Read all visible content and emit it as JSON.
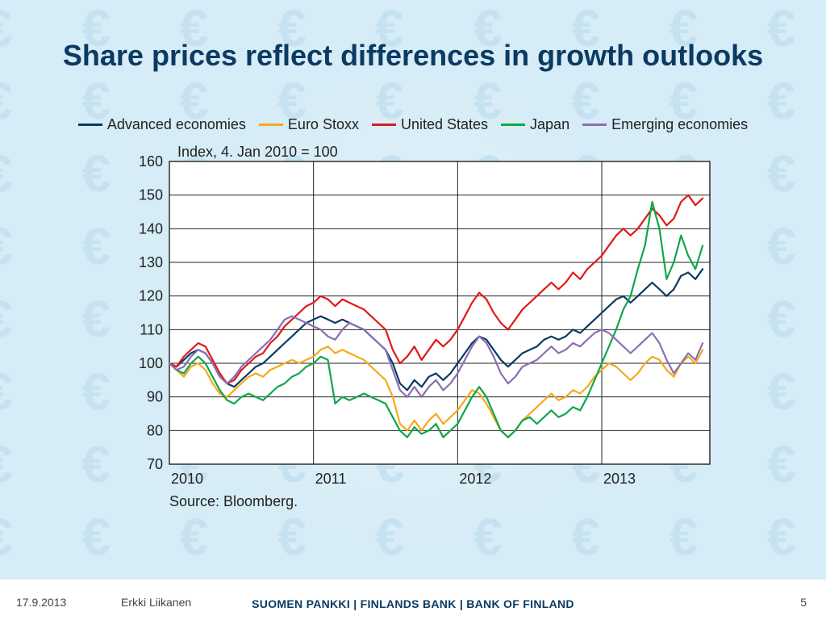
{
  "slide": {
    "title": "Share prices reflect differences in growth outlooks",
    "title_color": "#0b3a63",
    "title_fontsize": 36,
    "background_color": "#d6ecf6",
    "watermark_symbol": "€",
    "watermark_color": "#c6e2f0"
  },
  "chart": {
    "type": "line",
    "subtitle": "Index, 4. Jan 2010 = 100",
    "subtitle_fontsize": 18,
    "source_text": "Source: Bloomberg.",
    "plot_background": "#ffffff",
    "grid_color": "#222222",
    "grid_width": 1,
    "axis_color": "#222222",
    "line_width": 2.2,
    "x": {
      "min": 2010.0,
      "max": 2013.75,
      "ticks": [
        2010,
        2011,
        2012,
        2013
      ],
      "tick_labels": [
        "2010",
        "2011",
        "2012",
        "2013"
      ],
      "fontsize": 18
    },
    "y": {
      "min": 70,
      "max": 160,
      "ticks": [
        70,
        80,
        90,
        100,
        110,
        120,
        130,
        140,
        150,
        160
      ],
      "fontsize": 18
    },
    "legend": {
      "position": "top-center",
      "fontsize": 18,
      "items": [
        {
          "label": "Advanced economies",
          "color": "#0b3a63"
        },
        {
          "label": "Euro Stoxx",
          "color": "#f6a91b"
        },
        {
          "label": "United States",
          "color": "#e11919"
        },
        {
          "label": "Japan",
          "color": "#0fa74a"
        },
        {
          "label": "Emerging economies",
          "color": "#8a6fb3"
        }
      ]
    },
    "series": [
      {
        "name": "Advanced economies",
        "color": "#0b3a63",
        "x": [
          2010.0,
          2010.05,
          2010.1,
          2010.15,
          2010.2,
          2010.25,
          2010.3,
          2010.35,
          2010.4,
          2010.45,
          2010.5,
          2010.55,
          2010.6,
          2010.65,
          2010.7,
          2010.75,
          2010.8,
          2010.85,
          2010.9,
          2010.95,
          2011.0,
          2011.05,
          2011.1,
          2011.15,
          2011.2,
          2011.25,
          2011.3,
          2011.35,
          2011.4,
          2011.45,
          2011.5,
          2011.55,
          2011.6,
          2011.65,
          2011.7,
          2011.75,
          2011.8,
          2011.85,
          2011.9,
          2011.95,
          2012.0,
          2012.05,
          2012.1,
          2012.15,
          2012.2,
          2012.25,
          2012.3,
          2012.35,
          2012.4,
          2012.45,
          2012.5,
          2012.55,
          2012.6,
          2012.65,
          2012.7,
          2012.75,
          2012.8,
          2012.85,
          2012.9,
          2012.95,
          2013.0,
          2013.05,
          2013.1,
          2013.15,
          2013.2,
          2013.25,
          2013.3,
          2013.35,
          2013.4,
          2013.45,
          2013.5,
          2013.55,
          2013.6,
          2013.65,
          2013.7
        ],
        "y": [
          100,
          99,
          101,
          103,
          104,
          103,
          100,
          96,
          94,
          93,
          95,
          97,
          99,
          100,
          102,
          104,
          106,
          108,
          110,
          112,
          113,
          114,
          113,
          112,
          113,
          112,
          111,
          110,
          108,
          106,
          104,
          100,
          94,
          92,
          95,
          93,
          96,
          97,
          95,
          97,
          100,
          103,
          106,
          108,
          107,
          104,
          101,
          99,
          101,
          103,
          104,
          105,
          107,
          108,
          107,
          108,
          110,
          109,
          111,
          113,
          115,
          117,
          119,
          120,
          118,
          120,
          122,
          124,
          122,
          120,
          122,
          126,
          127,
          125,
          128
        ]
      },
      {
        "name": "Euro Stoxx",
        "color": "#f6a91b",
        "x": [
          2010.0,
          2010.05,
          2010.1,
          2010.15,
          2010.2,
          2010.25,
          2010.3,
          2010.35,
          2010.4,
          2010.45,
          2010.5,
          2010.55,
          2010.6,
          2010.65,
          2010.7,
          2010.75,
          2010.8,
          2010.85,
          2010.9,
          2010.95,
          2011.0,
          2011.05,
          2011.1,
          2011.15,
          2011.2,
          2011.25,
          2011.3,
          2011.35,
          2011.4,
          2011.45,
          2011.5,
          2011.55,
          2011.6,
          2011.65,
          2011.7,
          2011.75,
          2011.8,
          2011.85,
          2011.9,
          2011.95,
          2012.0,
          2012.05,
          2012.1,
          2012.15,
          2012.2,
          2012.25,
          2012.3,
          2012.35,
          2012.4,
          2012.45,
          2012.5,
          2012.55,
          2012.6,
          2012.65,
          2012.7,
          2012.75,
          2012.8,
          2012.85,
          2012.9,
          2012.95,
          2013.0,
          2013.05,
          2013.1,
          2013.15,
          2013.2,
          2013.25,
          2013.3,
          2013.35,
          2013.4,
          2013.45,
          2013.5,
          2013.55,
          2013.6,
          2013.65,
          2013.7
        ],
        "y": [
          100,
          98,
          96,
          99,
          100,
          98,
          94,
          91,
          90,
          92,
          94,
          96,
          97,
          96,
          98,
          99,
          100,
          101,
          100,
          101,
          102,
          104,
          105,
          103,
          104,
          103,
          102,
          101,
          99,
          97,
          95,
          90,
          82,
          80,
          83,
          80,
          83,
          85,
          82,
          84,
          86,
          89,
          92,
          91,
          88,
          84,
          80,
          78,
          80,
          83,
          85,
          87,
          89,
          91,
          89,
          90,
          92,
          91,
          93,
          96,
          98,
          100,
          99,
          97,
          95,
          97,
          100,
          102,
          101,
          98,
          96,
          100,
          102,
          100,
          104
        ]
      },
      {
        "name": "United States",
        "color": "#e11919",
        "x": [
          2010.0,
          2010.05,
          2010.1,
          2010.15,
          2010.2,
          2010.25,
          2010.3,
          2010.35,
          2010.4,
          2010.45,
          2010.5,
          2010.55,
          2010.6,
          2010.65,
          2010.7,
          2010.75,
          2010.8,
          2010.85,
          2010.9,
          2010.95,
          2011.0,
          2011.05,
          2011.1,
          2011.15,
          2011.2,
          2011.25,
          2011.3,
          2011.35,
          2011.4,
          2011.45,
          2011.5,
          2011.55,
          2011.6,
          2011.65,
          2011.7,
          2011.75,
          2011.8,
          2011.85,
          2011.9,
          2011.95,
          2012.0,
          2012.05,
          2012.1,
          2012.15,
          2012.2,
          2012.25,
          2012.3,
          2012.35,
          2012.4,
          2012.45,
          2012.5,
          2012.55,
          2012.6,
          2012.65,
          2012.7,
          2012.75,
          2012.8,
          2012.85,
          2012.9,
          2012.95,
          2013.0,
          2013.05,
          2013.1,
          2013.15,
          2013.2,
          2013.25,
          2013.3,
          2013.35,
          2013.4,
          2013.45,
          2013.5,
          2013.55,
          2013.6,
          2013.65,
          2013.7
        ],
        "y": [
          100,
          99,
          102,
          104,
          106,
          105,
          101,
          97,
          94,
          95,
          98,
          100,
          102,
          103,
          106,
          108,
          111,
          113,
          115,
          117,
          118,
          120,
          119,
          117,
          119,
          118,
          117,
          116,
          114,
          112,
          110,
          104,
          100,
          102,
          105,
          101,
          104,
          107,
          105,
          107,
          110,
          114,
          118,
          121,
          119,
          115,
          112,
          110,
          113,
          116,
          118,
          120,
          122,
          124,
          122,
          124,
          127,
          125,
          128,
          130,
          132,
          135,
          138,
          140,
          138,
          140,
          143,
          146,
          144,
          141,
          143,
          148,
          150,
          147,
          149
        ]
      },
      {
        "name": "Japan",
        "color": "#0fa74a",
        "x": [
          2010.0,
          2010.05,
          2010.1,
          2010.15,
          2010.2,
          2010.25,
          2010.3,
          2010.35,
          2010.4,
          2010.45,
          2010.5,
          2010.55,
          2010.6,
          2010.65,
          2010.7,
          2010.75,
          2010.8,
          2010.85,
          2010.9,
          2010.95,
          2011.0,
          2011.05,
          2011.1,
          2011.15,
          2011.2,
          2011.25,
          2011.3,
          2011.35,
          2011.4,
          2011.45,
          2011.5,
          2011.55,
          2011.6,
          2011.65,
          2011.7,
          2011.75,
          2011.8,
          2011.85,
          2011.9,
          2011.95,
          2012.0,
          2012.05,
          2012.1,
          2012.15,
          2012.2,
          2012.25,
          2012.3,
          2012.35,
          2012.4,
          2012.45,
          2012.5,
          2012.55,
          2012.6,
          2012.65,
          2012.7,
          2012.75,
          2012.8,
          2012.85,
          2012.9,
          2012.95,
          2013.0,
          2013.05,
          2013.1,
          2013.15,
          2013.2,
          2013.25,
          2013.3,
          2013.35,
          2013.4,
          2013.45,
          2013.5,
          2013.55,
          2013.6,
          2013.65,
          2013.7
        ],
        "y": [
          100,
          98,
          97,
          100,
          102,
          100,
          96,
          92,
          89,
          88,
          90,
          91,
          90,
          89,
          91,
          93,
          94,
          96,
          97,
          99,
          100,
          102,
          101,
          88,
          90,
          89,
          90,
          91,
          90,
          89,
          88,
          84,
          80,
          78,
          81,
          79,
          80,
          82,
          78,
          80,
          82,
          86,
          90,
          93,
          90,
          85,
          80,
          78,
          80,
          83,
          84,
          82,
          84,
          86,
          84,
          85,
          87,
          86,
          90,
          95,
          100,
          105,
          110,
          116,
          120,
          128,
          135,
          148,
          140,
          125,
          130,
          138,
          132,
          128,
          135
        ]
      },
      {
        "name": "Emerging economies",
        "color": "#8a6fb3",
        "x": [
          2010.0,
          2010.05,
          2010.1,
          2010.15,
          2010.2,
          2010.25,
          2010.3,
          2010.35,
          2010.4,
          2010.45,
          2010.5,
          2010.55,
          2010.6,
          2010.65,
          2010.7,
          2010.75,
          2010.8,
          2010.85,
          2010.9,
          2010.95,
          2011.0,
          2011.05,
          2011.1,
          2011.15,
          2011.2,
          2011.25,
          2011.3,
          2011.35,
          2011.4,
          2011.45,
          2011.5,
          2011.55,
          2011.6,
          2011.65,
          2011.7,
          2011.75,
          2011.8,
          2011.85,
          2011.9,
          2011.95,
          2012.0,
          2012.05,
          2012.1,
          2012.15,
          2012.2,
          2012.25,
          2012.3,
          2012.35,
          2012.4,
          2012.45,
          2012.5,
          2012.55,
          2012.6,
          2012.65,
          2012.7,
          2012.75,
          2012.8,
          2012.85,
          2012.9,
          2012.95,
          2013.0,
          2013.05,
          2013.1,
          2013.15,
          2013.2,
          2013.25,
          2013.3,
          2013.35,
          2013.4,
          2013.45,
          2013.5,
          2013.55,
          2013.6,
          2013.65,
          2013.7
        ],
        "y": [
          100,
          98,
          99,
          102,
          104,
          103,
          100,
          96,
          94,
          96,
          99,
          101,
          103,
          105,
          107,
          110,
          113,
          114,
          113,
          112,
          111,
          110,
          108,
          107,
          110,
          112,
          111,
          110,
          108,
          106,
          104,
          98,
          92,
          90,
          93,
          90,
          93,
          95,
          92,
          94,
          97,
          101,
          105,
          108,
          106,
          102,
          97,
          94,
          96,
          99,
          100,
          101,
          103,
          105,
          103,
          104,
          106,
          105,
          107,
          109,
          110,
          109,
          107,
          105,
          103,
          105,
          107,
          109,
          106,
          101,
          97,
          100,
          103,
          101,
          106
        ]
      }
    ]
  },
  "footer": {
    "date": "17.9.2013",
    "author": "Erkki Liikanen",
    "organization": "SUOMEN PANKKI | FINLANDS BANK | BANK OF FINLAND",
    "org_color": "#0b3a63",
    "page_number": "5",
    "background": "#ffffff"
  }
}
